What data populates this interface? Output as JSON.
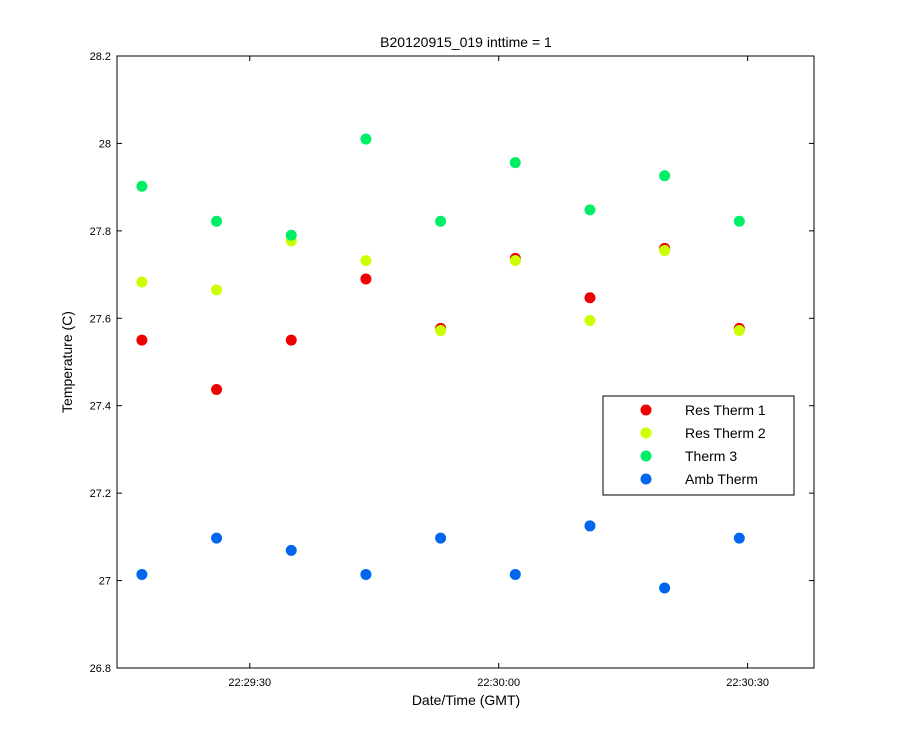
{
  "chart_data": {
    "type": "scatter",
    "title": "B20120915_019 inttime = 1",
    "xlabel": "Date/Time (GMT)",
    "ylabel": "Temperature (C)",
    "xlim": [
      "22:29:14",
      "22:30:38"
    ],
    "ylim": [
      26.8,
      28.2
    ],
    "yticks": [
      "26.8",
      "27",
      "27.2",
      "27.4",
      "27.6",
      "27.8",
      "28",
      "28.2"
    ],
    "xticks": [
      "22:29:30",
      "22:30:00",
      "22:30:30"
    ],
    "grid": false,
    "legend_position": "right-center",
    "x": [
      "22:29:17",
      "22:29:26",
      "22:29:35",
      "22:29:44",
      "22:29:53",
      "22:30:02",
      "22:30:11",
      "22:30:20",
      "22:30:29"
    ],
    "series": [
      {
        "name": "Res Therm 1",
        "color": "#ee0000",
        "values": [
          27.55,
          27.437,
          27.55,
          27.69,
          27.577,
          27.737,
          27.647,
          27.76,
          27.577
        ]
      },
      {
        "name": "Res Therm 2",
        "color": "#ccff00",
        "values": [
          27.683,
          27.665,
          27.777,
          27.732,
          27.572,
          27.732,
          27.595,
          27.755,
          27.572
        ]
      },
      {
        "name": "Therm 3",
        "color": "#00ee66",
        "values": [
          27.902,
          27.822,
          27.79,
          28.01,
          27.822,
          27.956,
          27.848,
          27.926,
          27.822
        ]
      },
      {
        "name": "Amb Therm",
        "color": "#0066ee",
        "values": [
          27.014,
          27.097,
          27.069,
          27.014,
          27.097,
          27.014,
          27.125,
          26.983,
          27.097
        ]
      }
    ]
  }
}
